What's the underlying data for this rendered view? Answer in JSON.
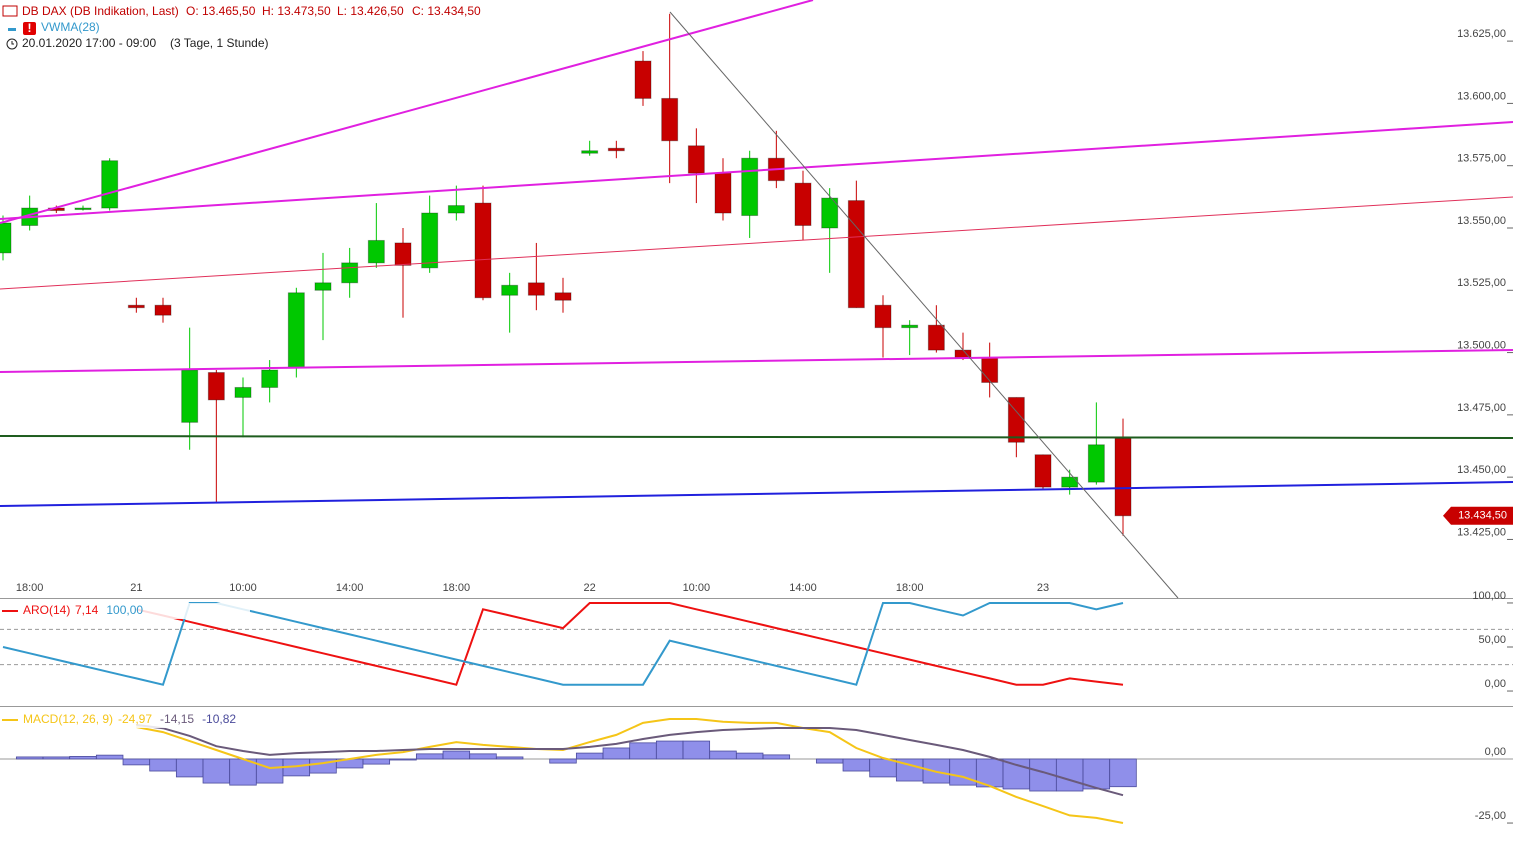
{
  "chart_data": [
    {
      "type": "candlestick",
      "title": "DB DAX (DB Indikation, Last)",
      "ohlc_labels": [
        "O: 13.465,50",
        "H: 13.473,50",
        "L: 13.426,50",
        "C: 13.434,50"
      ],
      "indicator": "VWMA(28)",
      "subtitle": "20.01.2020 17:00 - 09:00",
      "period": "(3 Tage, 1 Stunde)",
      "last_label": "13.434,50",
      "up_color": "#00c800",
      "down_color": "#c80000",
      "categories": [
        null,
        "18:00",
        null,
        null,
        null,
        "21",
        null,
        null,
        null,
        "10:00",
        null,
        null,
        null,
        "14:00",
        null,
        null,
        null,
        "18:00",
        null,
        null,
        null,
        null,
        "22",
        null,
        null,
        null,
        "10:00",
        null,
        null,
        null,
        "14:00",
        null,
        null,
        null,
        "18:00",
        null,
        null,
        null,
        null,
        "23",
        null,
        null,
        null
      ],
      "open": [
        13540,
        13551,
        13558,
        13558,
        13558,
        13519,
        13519,
        13472,
        13492,
        13482,
        13486,
        13494,
        13525,
        13528,
        13536,
        13544,
        13534,
        13556,
        13560,
        13523,
        13528,
        13524,
        13580,
        13582,
        13617,
        13602,
        13583,
        13572,
        13555,
        13578,
        13568,
        13550,
        13561,
        13519,
        13510,
        13511,
        13501,
        13498,
        13482,
        13459,
        13446,
        13448,
        13465.5
      ],
      "high": [
        13555,
        13563,
        13559,
        13559,
        13578,
        13522,
        13522,
        13510,
        13493,
        13490,
        13497,
        13526,
        13540,
        13542,
        13560,
        13550,
        13563,
        13567,
        13567,
        13532,
        13544,
        13530,
        13585,
        13585,
        13621,
        13636,
        13590,
        13578,
        13581,
        13589,
        13573,
        13566,
        13569,
        13523,
        13513,
        13519,
        13508,
        13504,
        13482,
        13459,
        13453,
        13480,
        13473.5
      ],
      "low": [
        13537,
        13549,
        13556,
        13557,
        13557,
        13516,
        13512,
        13461,
        13440,
        13466,
        13480,
        13490,
        13505,
        13522,
        13534,
        13514,
        13532,
        13553,
        13521,
        13508,
        13517,
        13516,
        13579,
        13578,
        13599,
        13568,
        13560,
        13553,
        13546,
        13566,
        13545,
        13532,
        13518,
        13498,
        13499,
        13500,
        13497,
        13482,
        13458,
        13445,
        13443,
        13447,
        13426.5
      ],
      "close": [
        13552,
        13558,
        13557,
        13558,
        13577,
        13518,
        13515,
        13493,
        13481,
        13486,
        13493,
        13524,
        13528,
        13536,
        13545,
        13535,
        13556,
        13559,
        13522,
        13527,
        13523,
        13521,
        13581,
        13581,
        13602,
        13585,
        13572,
        13556,
        13578,
        13569,
        13551,
        13562,
        13518,
        13510,
        13511,
        13501,
        13498,
        13488,
        13464,
        13446,
        13450,
        13463,
        13434.5
      ],
      "ylim": [
        13401.5,
        13641.5
      ],
      "yticks": [
        {
          "value": 13625,
          "label": "13.625,00"
        },
        {
          "value": 13600,
          "label": "13.600,00"
        },
        {
          "value": 13575,
          "label": "13.575,00"
        },
        {
          "value": 13550,
          "label": "13.550,00"
        },
        {
          "value": 13525,
          "label": "13.525,00"
        },
        {
          "value": 13500,
          "label": "13.500,00"
        },
        {
          "value": 13475,
          "label": "13.475,00"
        },
        {
          "value": 13450,
          "label": "13.450,00"
        },
        {
          "value": 13425,
          "label": "13.425,00"
        }
      ]
    },
    {
      "type": "line",
      "title": "ARO(14)",
      "series": [
        {
          "legend_label": "7,14",
          "color": "#ee1111",
          "values": [
            null,
            null,
            null,
            null,
            null,
            92.86,
            85.71,
            78.57,
            71.43,
            64.29,
            57.14,
            50,
            42.86,
            35.71,
            28.57,
            21.43,
            14.29,
            7.14,
            92.86,
            85.71,
            78.57,
            71.43,
            100,
            100,
            100,
            100,
            92.86,
            85.71,
            78.57,
            71.43,
            64.29,
            57.14,
            50,
            42.86,
            35.71,
            28.57,
            21.43,
            14.29,
            7.14,
            7.14,
            14.29,
            10.71,
            7.14
          ]
        },
        {
          "legend_label": "100,00",
          "color": "#3399cc",
          "values": [
            50,
            42.86,
            35.71,
            28.57,
            21.43,
            14.29,
            7.14,
            100,
            100,
            92.86,
            85.71,
            78.57,
            71.43,
            64.29,
            57.14,
            50,
            42.86,
            35.71,
            28.57,
            21.43,
            14.29,
            7.14,
            7.14,
            7.14,
            7.14,
            57.14,
            50,
            42.86,
            35.71,
            28.57,
            21.43,
            14.29,
            7.14,
            100,
            100,
            92.86,
            85.71,
            100,
            100,
            100,
            100,
            92.86,
            100
          ]
        }
      ],
      "levels": [
        70,
        30
      ],
      "ylim": [
        -17,
        104.5
      ],
      "yticks": [
        {
          "value": 100,
          "label": "100,00"
        },
        {
          "value": 50,
          "label": "50,00"
        },
        {
          "value": 0,
          "label": "0,00"
        }
      ]
    },
    {
      "type": "combo",
      "title": "MACD(12, 26, 9)",
      "series": [
        {
          "legend_label": "-24,97",
          "style": "line",
          "color": "#f5c518",
          "values": [
            null,
            null,
            null,
            null,
            null,
            12.5,
            10.5,
            7,
            3.5,
            0,
            -3.5,
            -2.8,
            -1.6,
            0,
            1.6,
            2.7,
            4.7,
            6.6,
            5.5,
            4.7,
            3.9,
            3.5,
            6.6,
            9.4,
            14.1,
            15.6,
            15.6,
            14.5,
            14.1,
            14.1,
            12.1,
            10.5,
            4.3,
            0.4,
            -2.3,
            -5,
            -7,
            -10.5,
            -14.8,
            -18.4,
            -22,
            -23,
            -24.97
          ]
        },
        {
          "legend_label": "-14,15",
          "style": "line",
          "color": "#6a5a7a",
          "values": [
            null,
            null,
            null,
            null,
            null,
            13.3,
            12,
            9,
            5,
            3.1,
            1.6,
            2.3,
            2.7,
            3.1,
            3.1,
            3.5,
            3.9,
            3.9,
            3.9,
            3.9,
            3.9,
            3.9,
            4.7,
            5.9,
            7.8,
            9.4,
            10.5,
            11.3,
            11.7,
            12.1,
            12.1,
            12.1,
            11.3,
            9.4,
            7.4,
            5.5,
            3.5,
            0.8,
            -2.3,
            -5.1,
            -8.2,
            -11.3,
            -14.15
          ]
        },
        {
          "legend_label": "-10,82",
          "style": "bar",
          "color": "#8f8fea",
          "values": [
            null,
            0.8,
            0.8,
            1,
            1.5,
            -2.3,
            -4.7,
            -7,
            -9.4,
            -10.2,
            -9.4,
            -6.6,
            -5.5,
            -3.5,
            -2,
            -0.4,
            2,
            3.1,
            2,
            0.8,
            0,
            -1.6,
            2.3,
            4.3,
            6.3,
            7,
            7,
            3.1,
            2.3,
            1.6,
            0,
            -1.6,
            -4.7,
            -7,
            -8.6,
            -9.4,
            -10.2,
            -10.9,
            -11.7,
            -12.5,
            -12.5,
            -11.7,
            -10.82
          ]
        }
      ],
      "ylim": [
        -32.4,
        19.9
      ],
      "yticks": [
        {
          "value": 0,
          "label": "0,00"
        },
        {
          "value": -25,
          "label": "-25,00"
        }
      ]
    }
  ]
}
